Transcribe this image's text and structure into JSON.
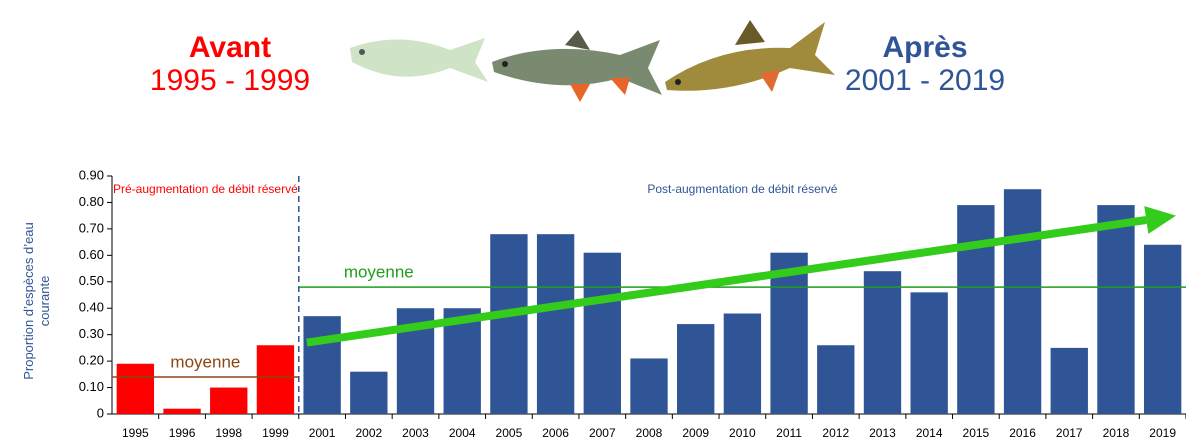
{
  "header": {
    "before_title": "Avant",
    "before_years": "1995 - 1999",
    "after_title": "Après",
    "after_years": "2001 - 2019"
  },
  "chart_data": {
    "type": "bar",
    "ylabel": "Proportion d’espèces d’eau courante",
    "categories": [
      "1995",
      "1996",
      "1998",
      "1999",
      "2001",
      "2002",
      "2003",
      "2004",
      "2005",
      "2006",
      "2007",
      "2008",
      "2009",
      "2010",
      "2011",
      "2012",
      "2013",
      "2014",
      "2015",
      "2016",
      "2017",
      "2018",
      "2019"
    ],
    "series": [
      {
        "name": "Pré-augmentation de débit réservé",
        "color": "#ff0000",
        "values": [
          0.19,
          0.02,
          0.1,
          0.26,
          null,
          null,
          null,
          null,
          null,
          null,
          null,
          null,
          null,
          null,
          null,
          null,
          null,
          null,
          null,
          null,
          null,
          null,
          null
        ],
        "mean": {
          "label": "moyenne",
          "value": 0.14,
          "color": "#8b4513"
        }
      },
      {
        "name": "Post-augmentation de débit réservé",
        "color": "#2f5597",
        "values": [
          null,
          null,
          null,
          null,
          0.37,
          0.16,
          0.4,
          0.4,
          0.68,
          0.68,
          0.61,
          0.21,
          0.34,
          0.38,
          0.61,
          0.26,
          0.54,
          0.46,
          0.79,
          0.85,
          0.25,
          0.79,
          0.64
        ],
        "mean": {
          "label": "moyenne",
          "value": 0.48,
          "color": "#1e9e1e"
        },
        "trend": {
          "from": 0.27,
          "to": 0.75,
          "color": "#33cc1a"
        }
      }
    ],
    "ylim": [
      0,
      0.9
    ],
    "yticks": [
      0,
      {
        "value": 0.1,
        "label": "0.10"
      },
      {
        "value": 0.2,
        "label": "0.20"
      },
      {
        "value": 0.3,
        "label": "0.30"
      },
      {
        "value": 0.4,
        "label": "0.40"
      },
      {
        "value": 0.5,
        "label": "0.50"
      },
      {
        "value": 0.6,
        "label": "0.60"
      },
      {
        "value": 0.7,
        "label": "0.70"
      },
      {
        "value": 0.8,
        "label": "0.80"
      },
      {
        "value": 0.9,
        "label": "0.90"
      }
    ]
  }
}
